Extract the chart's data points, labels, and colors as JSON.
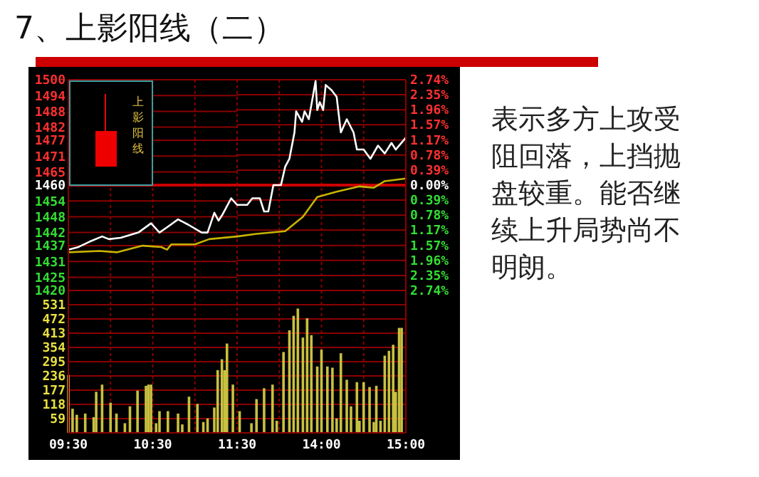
{
  "chart_data": [
    {
      "type": "line",
      "title": "7、上影阳线（二）",
      "annotations": [
        "上影阳线",
        "表示多方上攻受阻回落，上挡抛盘较重。能否继续上升局势尚不明朗。"
      ],
      "grid": true,
      "xlim": [
        9.5,
        11.5
      ],
      "ylim": [
        1420,
        1500
      ],
      "yticks": [
        1420,
        1425,
        1431,
        1437,
        1442,
        1448,
        1454,
        1460,
        1465,
        1471,
        1477,
        1482,
        1488,
        1494,
        1500
      ],
      "ref_lines": [
        {
          "axis": "y",
          "value": 1460,
          "color": "#cc0000"
        }
      ],
      "series": [
        {
          "color": "#ffffff",
          "x": [
            9.5,
            9.62,
            9.75,
            9.9,
            9.98,
            10.12,
            10.33,
            10.48,
            10.58,
            10.67,
            10.8,
            10.92,
            11.08,
            11.15,
            11.23,
            11.28,
            11.33,
            11.43,
            11.5
          ],
          "values": [
            1435.5,
            1436.5,
            1438.5,
            1440.5,
            1439.5,
            1440,
            1442,
            1445.5,
            1442,
            1444,
            1447,
            1445,
            1442,
            1442,
            1449.5,
            1446.5,
            1449,
            1455,
            1452.5
          ]
        },
        {
          "color": "#c8b400",
          "x": [
            9.5,
            9.87,
            10.08,
            10.38,
            10.6,
            10.67,
            10.72,
            11,
            11.17,
            11.5
          ],
          "values": [
            1434.5,
            1435,
            1434.5,
            1437,
            1436.5,
            1435.5,
            1437.5,
            1437.5,
            1439.5,
            1440.5
          ]
        }
      ]
    },
    {
      "type": "line",
      "grid": true,
      "xlim": [
        13,
        15
      ],
      "ylim": [
        1420,
        1500
      ],
      "y2lim": [
        -2.74,
        2.74
      ],
      "y2ticks": [
        {
          "value": -2.74,
          "label": "2.74%"
        },
        {
          "value": -2.35,
          "label": "2.35%"
        },
        {
          "value": -1.96,
          "label": "1.96%"
        },
        {
          "value": -1.57,
          "label": "1.57%"
        },
        {
          "value": -1.17,
          "label": "1.17%"
        },
        {
          "value": -0.78,
          "label": "0.78%"
        },
        {
          "value": -0.39,
          "label": "0.39%"
        },
        {
          "value": 0,
          "label": "0.00%"
        },
        {
          "value": 0.39,
          "label": "0.39%"
        },
        {
          "value": 0.78,
          "label": "0.78%"
        },
        {
          "value": 1.17,
          "label": "1.17%"
        },
        {
          "value": 1.57,
          "label": "1.57%"
        },
        {
          "value": 1.96,
          "label": "1.96%"
        },
        {
          "value": 2.35,
          "label": "2.35%"
        },
        {
          "value": 2.74,
          "label": "2.74%"
        }
      ],
      "ref_lines": [
        {
          "axis": "y2",
          "value": 0,
          "color": "#cc0000"
        }
      ],
      "series": [
        {
          "color": "#ffffff",
          "x": [
            13,
            13.12,
            13.18,
            13.27,
            13.32,
            13.37,
            13.43,
            13.52,
            13.57,
            13.62,
            13.68,
            13.7,
            13.77,
            13.8,
            13.85,
            13.9,
            13.93,
            13.95,
            13.98,
            14.02,
            14.05,
            14.12,
            14.18,
            14.23,
            14.3,
            14.38,
            14.42,
            14.5,
            14.58,
            14.67,
            14.75,
            14.83,
            14.88,
            15
          ],
          "values": [
            1452.5,
            1452.5,
            1455,
            1455,
            1450,
            1450,
            1460,
            1460,
            1467,
            1470,
            1480,
            1488,
            1484,
            1488,
            1485,
            1494,
            1499.5,
            1488.5,
            1491.5,
            1488.5,
            1498,
            1496,
            1493.5,
            1480,
            1485,
            1480,
            1473.5,
            1473.5,
            1470,
            1475,
            1472,
            1476,
            1473.5,
            1478
          ]
        },
        {
          "color": "#c8b400",
          "x": [
            13,
            13.23,
            13.57,
            13.78,
            13.95,
            14.18,
            14.45,
            14.62,
            14.75,
            15
          ],
          "values": [
            1440.5,
            1441.5,
            1442.5,
            1448,
            1455.5,
            1457.5,
            1459.5,
            1459,
            1461.5,
            1462.5
          ]
        }
      ]
    },
    {
      "type": "bar",
      "grid": true,
      "xlim": [
        9.5,
        11.5
      ],
      "xticks": [
        {
          "value": 9.5,
          "label": "09:30"
        },
        {
          "value": 10,
          "label": null
        },
        {
          "value": 10.5,
          "label": "10:30"
        },
        {
          "value": 11,
          "label": null
        },
        {
          "value": 11.5,
          "label": "11:30"
        }
      ],
      "ylim": [
        0,
        590
      ],
      "yticks": [
        59,
        118,
        177,
        236,
        295,
        354,
        413,
        472,
        531
      ],
      "series": [
        {
          "color": "#c8c040",
          "x": [
            9.5,
            9.55,
            9.6,
            9.7,
            9.8,
            9.83,
            9.9,
            10,
            10.07,
            10.17,
            10.23,
            10.32,
            10.42,
            10.45,
            10.48,
            10.54,
            10.58,
            10.68,
            10.8,
            10.85,
            10.93,
            11.03,
            11.1,
            11.15,
            11.23,
            11.27,
            11.32,
            11.35,
            11.38,
            11.45
          ],
          "values": [
            240,
            100,
            75,
            80,
            65,
            170,
            200,
            125,
            80,
            40,
            110,
            175,
            195,
            200,
            200,
            40,
            90,
            90,
            80,
            35,
            150,
            120,
            45,
            60,
            105,
            260,
            305,
            260,
            370,
            200
          ]
        }
      ]
    },
    {
      "type": "bar",
      "grid": true,
      "tick_labels": "x",
      "xlim": [
        13,
        15
      ],
      "xticks": [
        {
          "value": 13,
          "label": null
        },
        {
          "value": 13.5,
          "label": null
        },
        {
          "value": 14,
          "label": "14:00"
        },
        {
          "value": 14.5,
          "label": null
        },
        {
          "value": 15,
          "label": "15:00"
        }
      ],
      "ylim": [
        0,
        590
      ],
      "yticks": [
        59,
        118,
        177,
        236,
        295,
        354,
        413,
        472,
        531
      ],
      "series": [
        {
          "color": "#c8c040",
          "x": [
            13.03,
            13.17,
            13.23,
            13.32,
            13.42,
            13.47,
            13.55,
            13.62,
            13.67,
            13.72,
            13.78,
            13.83,
            13.88,
            13.95,
            14,
            14.07,
            14.13,
            14.18,
            14.23,
            14.3,
            14.35,
            14.42,
            14.45,
            14.5,
            14.57,
            14.62,
            14.65,
            14.7,
            14.75,
            14.8,
            14.85,
            14.88,
            14.92,
            14.95
          ],
          "values": [
            90,
            40,
            140,
            185,
            200,
            50,
            335,
            425,
            485,
            515,
            395,
            475,
            405,
            275,
            345,
            275,
            270,
            60,
            330,
            220,
            110,
            210,
            50,
            210,
            190,
            45,
            195,
            50,
            320,
            340,
            365,
            170,
            435,
            435
          ]
        }
      ]
    }
  ]
}
